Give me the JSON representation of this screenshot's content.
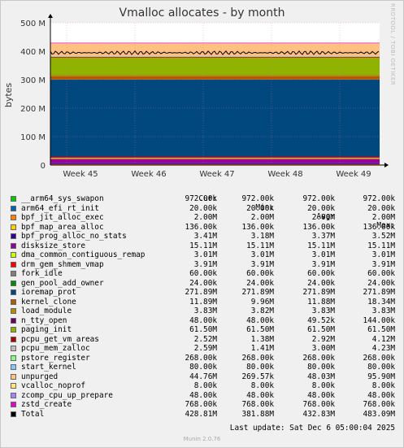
{
  "title": "Vmalloc allocates - by month",
  "side_credit": "RRDTOOL / TOBI OETIKER",
  "footer": {
    "last_update": "Last update: Sat Dec  6 05:00:04 2025",
    "version": "Munin 2.0.76"
  },
  "legend_headers": {
    "cur": "Cur:",
    "min": "Min:",
    "avg": "Avg:",
    "max": "Max:"
  },
  "chart_data": {
    "type": "area",
    "title": "Vmalloc allocates - by month",
    "ylabel": "bytes",
    "ylim": [
      0,
      500000000
    ],
    "y_ticks": [
      {
        "value": 0,
        "label": "0"
      },
      {
        "value": 100000000,
        "label": "100 M"
      },
      {
        "value": 200000000,
        "label": "200 M"
      },
      {
        "value": 300000000,
        "label": "300 M"
      },
      {
        "value": 400000000,
        "label": "400 M"
      },
      {
        "value": 500000000,
        "label": "500 M"
      }
    ],
    "x_ticks": [
      "Week 45",
      "Week 46",
      "Week 47",
      "Week 48",
      "Week 49"
    ],
    "grid": true,
    "stacked": true,
    "series": [
      {
        "name": "__arm64_sys_swapon",
        "color": "#00cc00",
        "cur": "972.00k",
        "min": "972.00k",
        "avg": "972.00k",
        "max": "972.00k",
        "value": 972000
      },
      {
        "name": "arm64_efi_rt_init",
        "color": "#0066b3",
        "cur": "20.00k",
        "min": "20.00k",
        "avg": "20.00k",
        "max": "20.00k",
        "value": 20000
      },
      {
        "name": "bpf_jit_alloc_exec",
        "color": "#ff8000",
        "cur": "2.00M",
        "min": "2.00M",
        "avg": "2.00M",
        "max": "2.00M",
        "value": 2000000
      },
      {
        "name": "bpf_map_area_alloc",
        "color": "#ffcc00",
        "cur": "136.00k",
        "min": "136.00k",
        "avg": "136.00k",
        "max": "136.00k",
        "value": 136000
      },
      {
        "name": "bpf_prog_alloc_no_stats",
        "color": "#330099",
        "cur": "3.41M",
        "min": "3.18M",
        "avg": "3.37M",
        "max": "3.52M",
        "value": 3410000
      },
      {
        "name": "disksize_store",
        "color": "#990099",
        "cur": "15.11M",
        "min": "15.11M",
        "avg": "15.11M",
        "max": "15.11M",
        "value": 15110000
      },
      {
        "name": "dma_common_contiguous_remap",
        "color": "#ccff00",
        "cur": "3.01M",
        "min": "3.01M",
        "avg": "3.01M",
        "max": "3.01M",
        "value": 3010000
      },
      {
        "name": "drm_gem_shmem_vmap",
        "color": "#ff0000",
        "cur": "3.91M",
        "min": "3.91M",
        "avg": "3.91M",
        "max": "3.91M",
        "value": 3910000
      },
      {
        "name": "fork_idle",
        "color": "#808080",
        "cur": "60.00k",
        "min": "60.00k",
        "avg": "60.00k",
        "max": "60.00k",
        "value": 60000
      },
      {
        "name": "gen_pool_add_owner",
        "color": "#008f00",
        "cur": "24.00k",
        "min": "24.00k",
        "avg": "24.00k",
        "max": "24.00k",
        "value": 24000
      },
      {
        "name": "ioremap_prot",
        "color": "#00487d",
        "cur": "271.89M",
        "min": "271.89M",
        "avg": "271.89M",
        "max": "271.89M",
        "value": 271890000
      },
      {
        "name": "kernel_clone",
        "color": "#b35a00",
        "cur": "11.89M",
        "min": "9.96M",
        "avg": "11.88M",
        "max": "18.34M",
        "value": 11890000
      },
      {
        "name": "load_module",
        "color": "#b38f00",
        "cur": "3.83M",
        "min": "3.82M",
        "avg": "3.83M",
        "max": "3.83M",
        "value": 3830000
      },
      {
        "name": "n_tty_open",
        "color": "#6b006b",
        "cur": "48.00k",
        "min": "48.00k",
        "avg": "49.52k",
        "max": "144.00k",
        "value": 48000
      },
      {
        "name": "paging_init",
        "color": "#8fb300",
        "cur": "61.50M",
        "min": "61.50M",
        "avg": "61.50M",
        "max": "61.50M",
        "value": 61500000
      },
      {
        "name": "pcpu_get_vm_areas",
        "color": "#b30000",
        "cur": "2.52M",
        "min": "1.38M",
        "avg": "2.92M",
        "max": "4.12M",
        "value": 2520000
      },
      {
        "name": "pcpu_mem_zalloc",
        "color": "#bebebe",
        "cur": "2.59M",
        "min": "1.41M",
        "avg": "3.00M",
        "max": "4.23M",
        "value": 2590000
      },
      {
        "name": "pstore_register",
        "color": "#80ff80",
        "cur": "268.00k",
        "min": "268.00k",
        "avg": "268.00k",
        "max": "268.00k",
        "value": 268000
      },
      {
        "name": "start_kernel",
        "color": "#80c9ff",
        "cur": "80.00k",
        "min": "80.00k",
        "avg": "80.00k",
        "max": "80.00k",
        "value": 80000
      },
      {
        "name": "unpurged",
        "color": "#ffc080",
        "cur": "44.76M",
        "min": "269.57k",
        "avg": "48.03M",
        "max": "95.90M",
        "value": 44760000
      },
      {
        "name": "vcalloc_noprof",
        "color": "#ffe680",
        "cur": "8.00k",
        "min": "8.00k",
        "avg": "8.00k",
        "max": "8.00k",
        "value": 8000
      },
      {
        "name": "zcomp_cpu_up_prepare",
        "color": "#aa80ff",
        "cur": "48.00k",
        "min": "48.00k",
        "avg": "48.00k",
        "max": "48.00k",
        "value": 48000
      },
      {
        "name": "zstd_create",
        "color": "#ee00cc",
        "cur": "768.00k",
        "min": "768.00k",
        "avg": "768.00k",
        "max": "768.00k",
        "value": 768000
      },
      {
        "name": "Total",
        "color": "#000000",
        "cur": "428.81M",
        "min": "381.88M",
        "avg": "432.83M",
        "max": "483.09M",
        "value": 428810000
      }
    ]
  }
}
